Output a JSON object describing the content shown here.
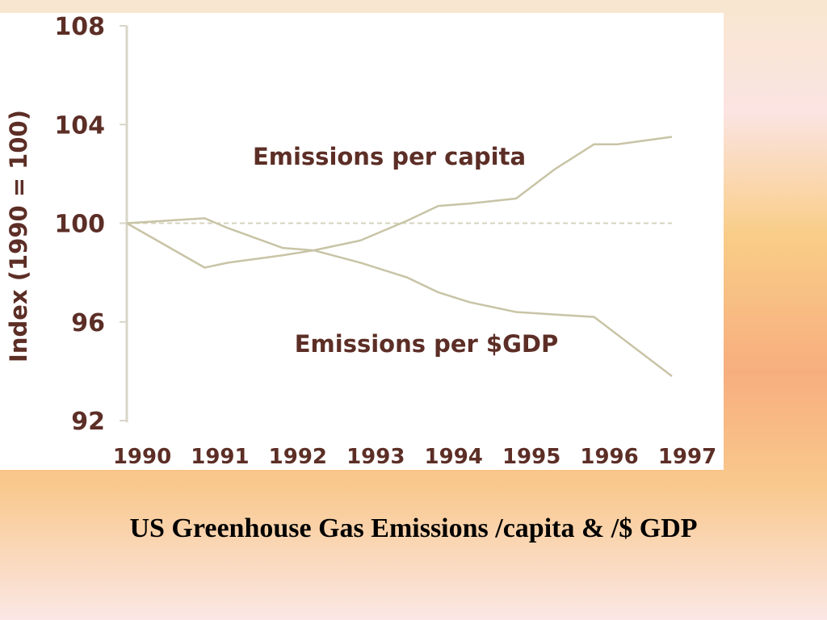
{
  "caption": "US Greenhouse Gas Emissions /capita & /$ GDP",
  "colors": {
    "panel": "#ffffff",
    "text": "#5c2e26",
    "axis": "#d9d6c8",
    "series": "#c8c4a6",
    "baseline": "#d6d3bd"
  },
  "chart_data": {
    "type": "line",
    "title": "",
    "xlabel": "",
    "ylabel": "Index (1990 = 100)",
    "ylim": [
      92,
      108
    ],
    "yticks": [
      108,
      104,
      100,
      96,
      92
    ],
    "xticks": [
      1990,
      1991,
      1992,
      1993,
      1994,
      1995,
      1996,
      1997
    ],
    "baseline": 100,
    "grid": false,
    "legend": "none",
    "series": [
      {
        "name": "Emissions per capita",
        "x": [
          1990,
          1991,
          1991.3,
          1992,
          1992.4,
          1993,
          1993.6,
          1994,
          1994.4,
          1995,
          1995.5,
          1996,
          1996.3,
          1997
        ],
        "values": [
          100,
          98.2,
          98.4,
          98.7,
          98.9,
          99.3,
          100.1,
          100.7,
          100.8,
          101,
          102.2,
          103.2,
          103.2,
          103.5
        ]
      },
      {
        "name": "Emissions per $GDP",
        "x": [
          1990,
          1991,
          1991.3,
          1992,
          1992.4,
          1993,
          1993.6,
          1994,
          1994.4,
          1995,
          1995.5,
          1996,
          1997
        ],
        "values": [
          100,
          100.2,
          99.8,
          99,
          98.9,
          98.4,
          97.8,
          97.2,
          96.8,
          96.4,
          96.3,
          96.2,
          93.8
        ]
      }
    ]
  }
}
